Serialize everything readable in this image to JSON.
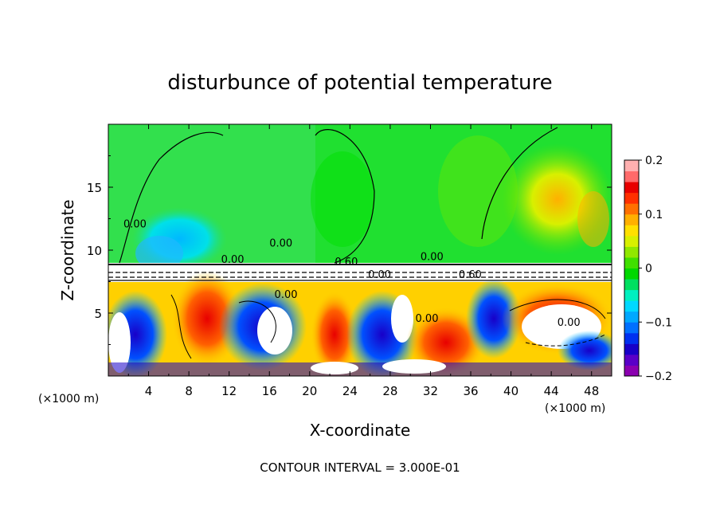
{
  "chart_data": {
    "type": "heatmap",
    "title": "disturbunce of potential temperature",
    "xlabel": "X-coordinate",
    "ylabel": "Z-coordinate",
    "x_unit": "(×1000 m)",
    "x_ticks": [
      "4",
      "8",
      "12",
      "16",
      "20",
      "24",
      "28",
      "32",
      "36",
      "40",
      "44",
      "48"
    ],
    "x_tick_values": [
      4,
      8,
      12,
      16,
      20,
      24,
      28,
      32,
      36,
      40,
      44,
      48
    ],
    "xlim": [
      0,
      50
    ],
    "y_ticks": [
      "5",
      "10",
      "15"
    ],
    "y_tick_values": [
      5,
      10,
      15
    ],
    "ylim": [
      0,
      20
    ],
    "colorbar": {
      "min": -0.2,
      "max": 0.2,
      "tick_labels": [
        "0.2",
        "0.1",
        "0",
        "−0.1",
        "−0.2"
      ],
      "tick_values": [
        0.2,
        0.1,
        0,
        -0.1,
        -0.2
      ],
      "colors": [
        "#8b00b0",
        "#5a00c8",
        "#1800c8",
        "#0030f0",
        "#0070ff",
        "#00a8ff",
        "#00d8ff",
        "#00f0c0",
        "#00e060",
        "#00d800",
        "#40e000",
        "#90e800",
        "#d8f000",
        "#ffe000",
        "#ffb000",
        "#ff7000",
        "#ff3000",
        "#e80000",
        "#ff6a6a",
        "#ffb0b0"
      ]
    },
    "contour_labels": [
      {
        "text": "0.00",
        "x": 1.5,
        "y": 11.8
      },
      {
        "text": "0.00",
        "x": 16.0,
        "y": 10.3
      },
      {
        "text": "0.00",
        "x": 11.2,
        "y": 9.0
      },
      {
        "text": "0.60",
        "x": 22.5,
        "y": 8.8
      },
      {
        "text": "0.00",
        "x": 25.8,
        "y": 7.8
      },
      {
        "text": "0.00",
        "x": 31.0,
        "y": 9.2
      },
      {
        "text": "0.60",
        "x": 34.8,
        "y": 7.8
      },
      {
        "text": "0.00",
        "x": 16.5,
        "y": 6.2
      },
      {
        "text": "0.00",
        "x": 30.5,
        "y": 4.3
      },
      {
        "text": "0.00",
        "x": 44.6,
        "y": 4.0
      }
    ],
    "contour_interval_text": "CONTOUR INTERVAL = 3.000E-01"
  }
}
